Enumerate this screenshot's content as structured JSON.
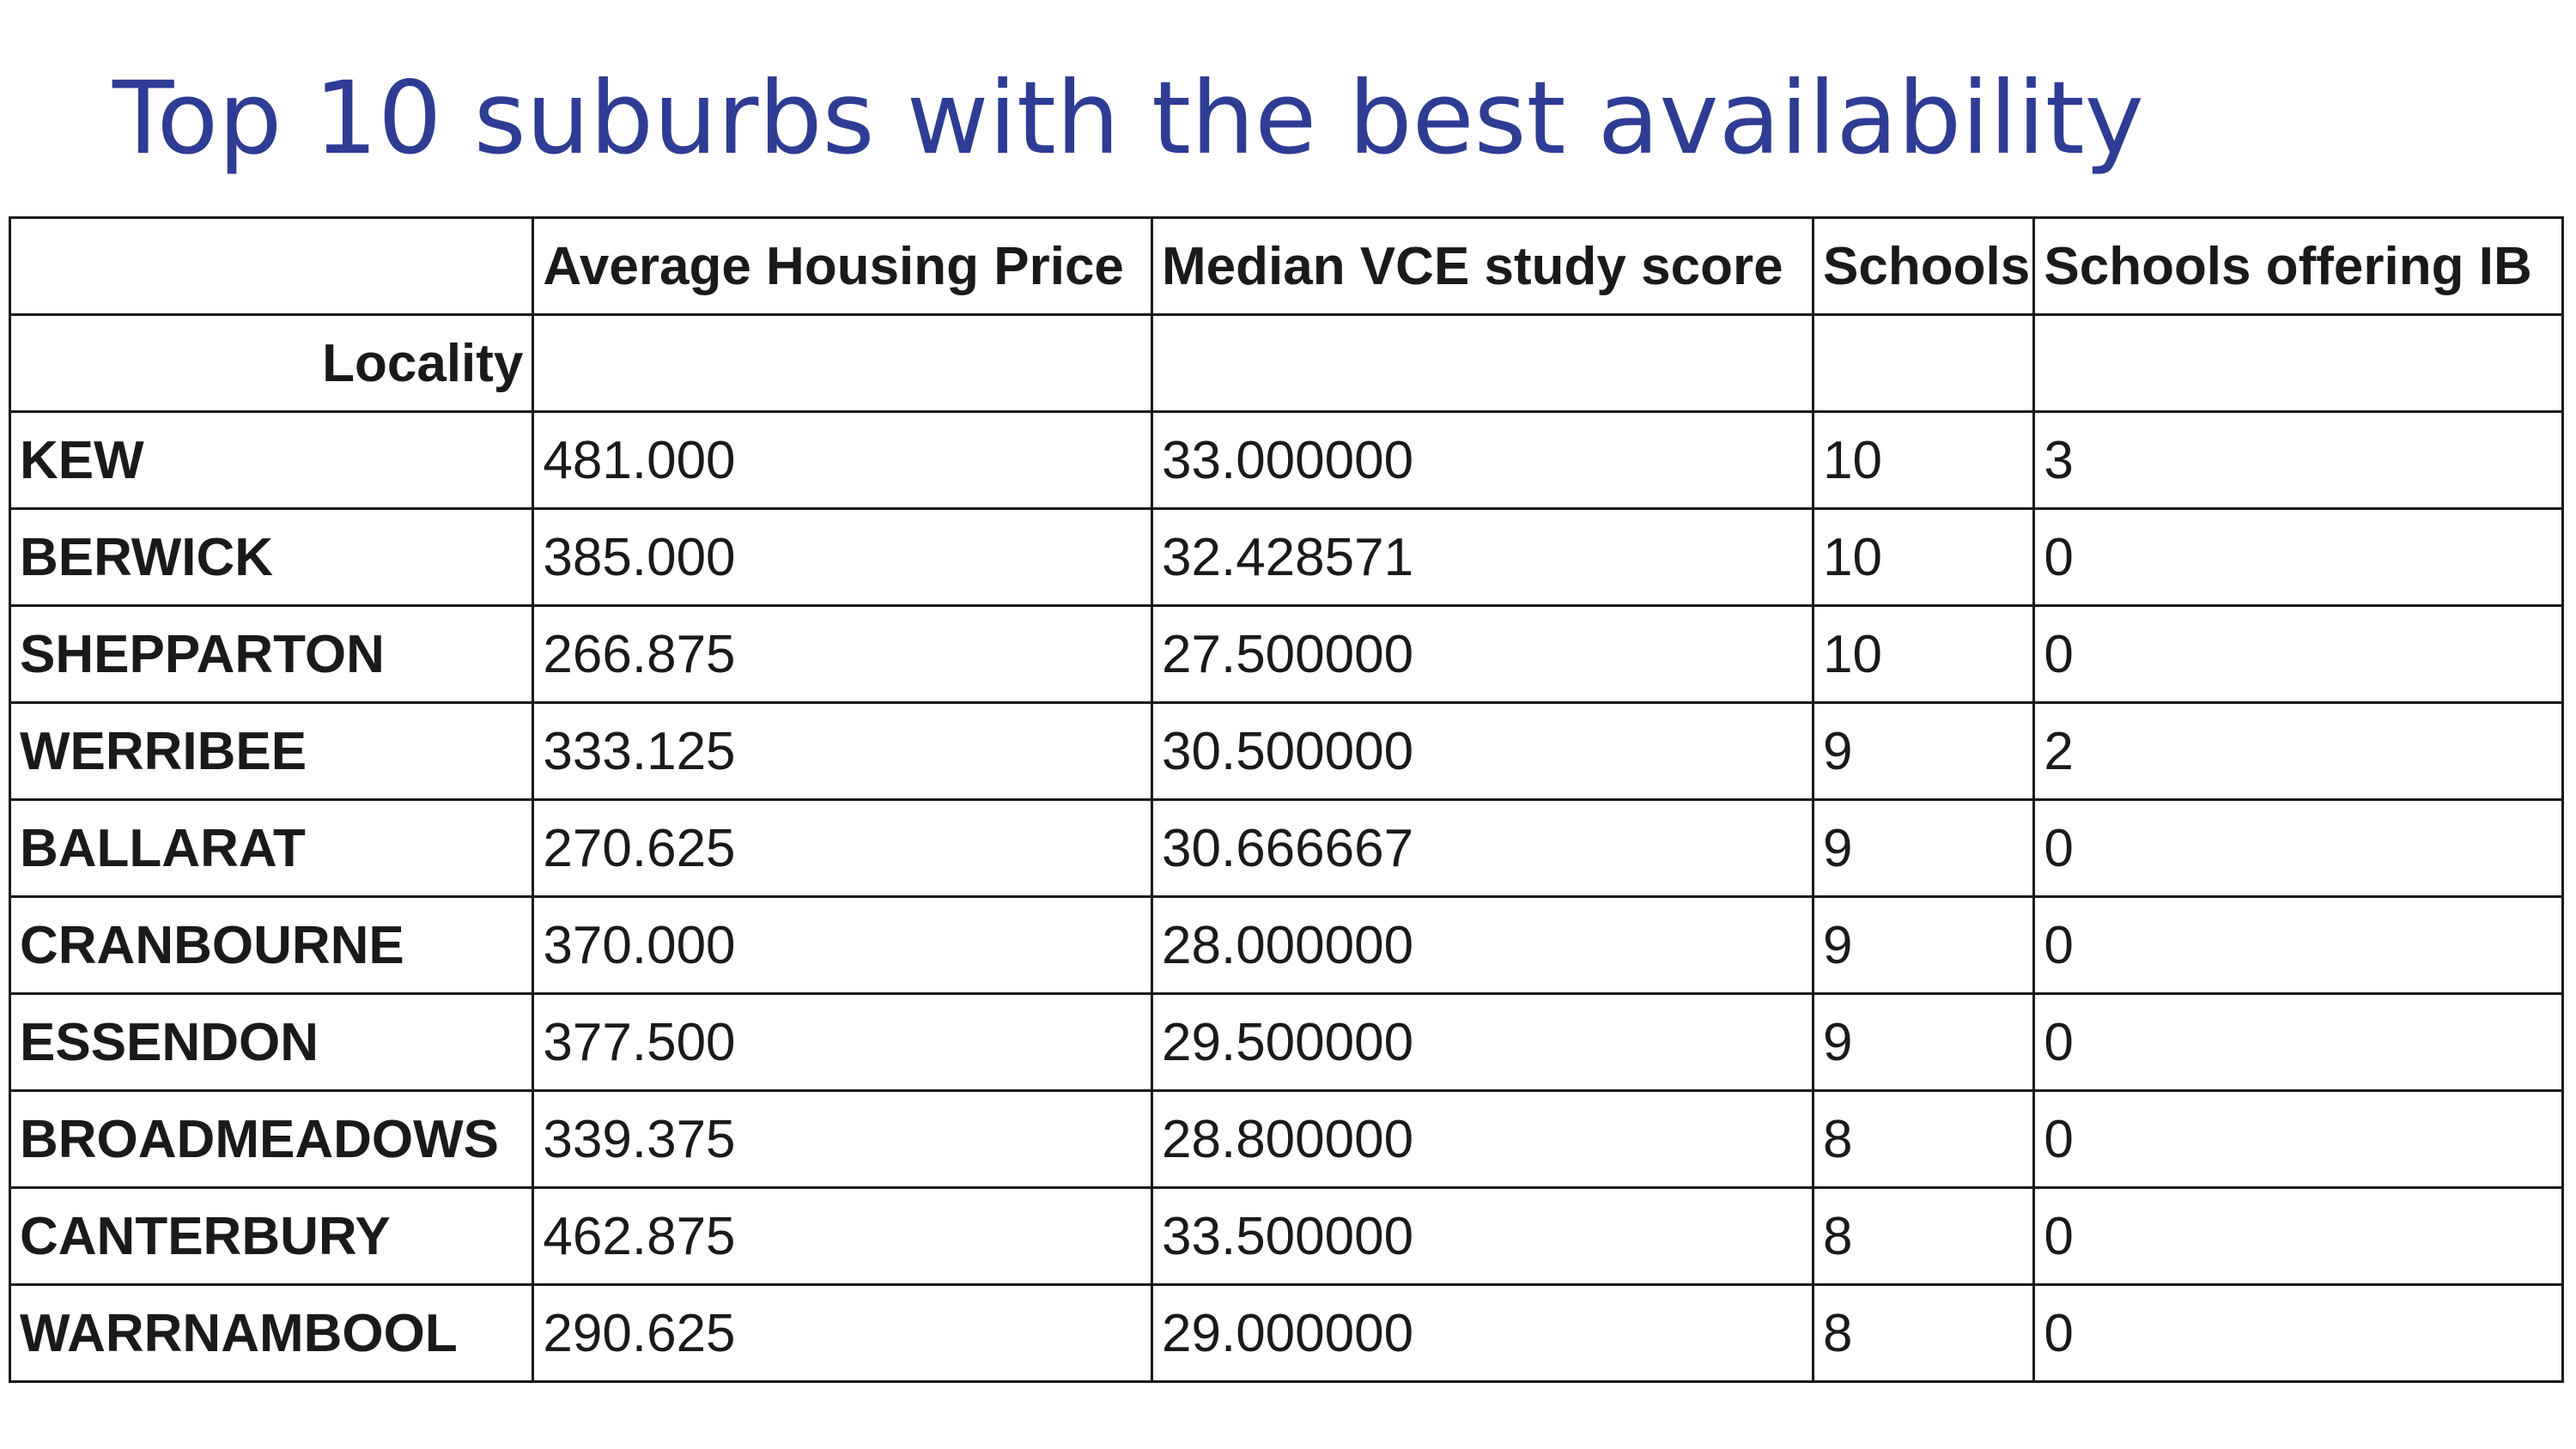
{
  "title": "Top 10 suburbs with the best availability",
  "table": {
    "index_name": "Locality",
    "columns": [
      "Average Housing Price",
      "Median VCE study score",
      "Schools",
      "Schools offering IB"
    ],
    "rows": [
      {
        "locality": "KEW",
        "values": [
          "481.000",
          "33.000000",
          "10",
          "3"
        ]
      },
      {
        "locality": "BERWICK",
        "values": [
          "385.000",
          "32.428571",
          "10",
          "0"
        ]
      },
      {
        "locality": "SHEPPARTON",
        "values": [
          "266.875",
          "27.500000",
          "10",
          "0"
        ]
      },
      {
        "locality": "WERRIBEE",
        "values": [
          "333.125",
          "30.500000",
          "9",
          "2"
        ]
      },
      {
        "locality": "BALLARAT",
        "values": [
          "270.625",
          "30.666667",
          "9",
          "0"
        ]
      },
      {
        "locality": "CRANBOURNE",
        "values": [
          "370.000",
          "28.000000",
          "9",
          "0"
        ]
      },
      {
        "locality": "ESSENDON",
        "values": [
          "377.500",
          "29.500000",
          "9",
          "0"
        ]
      },
      {
        "locality": "BROADMEADOWS",
        "values": [
          "339.375",
          "28.800000",
          "8",
          "0"
        ]
      },
      {
        "locality": "CANTERBURY",
        "values": [
          "462.875",
          "33.500000",
          "8",
          "0"
        ]
      },
      {
        "locality": "WARRNAMBOOL",
        "values": [
          "290.625",
          "29.000000",
          "8",
          "0"
        ]
      }
    ]
  },
  "colors": {
    "title": "#2e3c94",
    "text": "#1a1a1a",
    "grid": "#1a1a1a",
    "background": "#ffffff"
  }
}
